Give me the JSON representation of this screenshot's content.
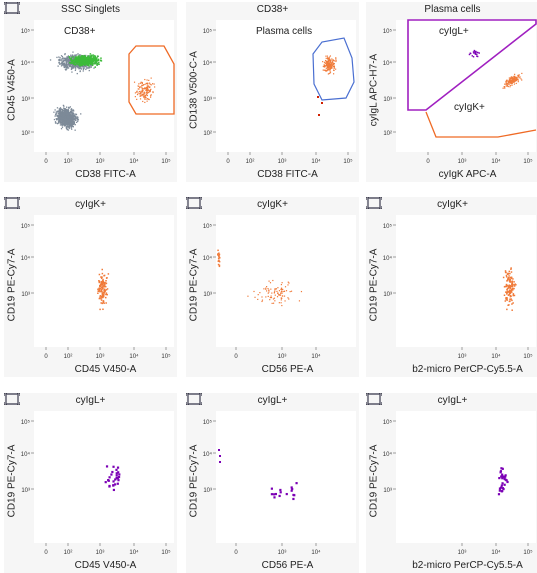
{
  "colors": {
    "gray_events": "#7d8a98",
    "green_events": "#3dbb3a",
    "orange_events": "#f07b3a",
    "purple_events": "#7b00b5",
    "gate_orange": "#ef6a25",
    "gate_blue": "#4a6fd1",
    "gate_purple": "#a020c0"
  },
  "icons": {
    "corner": "axis-toggle-icon"
  },
  "ticks": {
    "y_log": [
      "10⁵",
      "10⁴",
      "10³",
      "10²"
    ],
    "y_log_short": [
      "10⁵",
      "10⁴",
      "10³"
    ],
    "x_log": [
      "0",
      "10²",
      "10³",
      "10⁴",
      "10⁵"
    ],
    "x_cd56": [
      "0",
      "10³",
      "10⁴"
    ],
    "x_b2": [
      "10³",
      "10⁴",
      "10⁵"
    ],
    "x_cyigk": [
      "0",
      "10³",
      "10⁴",
      "10⁵"
    ]
  },
  "panels": [
    {
      "title": "SSC Singlets",
      "xlabel": "CD38 FITC-A",
      "ylabel": "CD45 V450-A",
      "gate_label": "CD38+"
    },
    {
      "title": "CD38+",
      "xlabel": "CD38 FITC-A",
      "ylabel": "CD138 V500-C-A",
      "gate_label": "Plasma cells"
    },
    {
      "title": "Plasma cells",
      "xlabel": "cyIgK APC-A",
      "ylabel": "cyIgL APC-H7-A",
      "gate_label": "cyIgL+",
      "gate_label2": "cyIgK+"
    },
    {
      "title": "cyIgK+",
      "xlabel": "CD45 V450-A",
      "ylabel": "CD19 PE-Cy7-A"
    },
    {
      "title": "cyIgK+",
      "xlabel": "CD56 PE-A",
      "ylabel": "CD19 PE-Cy7-A"
    },
    {
      "title": "cyIgK+",
      "xlabel": "b2-micro PerCP-Cy5.5-A",
      "ylabel": "CD19 PE-Cy7-A"
    },
    {
      "title": "cyIgL+",
      "xlabel": "CD45 V450-A",
      "ylabel": "CD19 PE-Cy7-A"
    },
    {
      "title": "cyIgL+",
      "xlabel": "CD56 PE-A",
      "ylabel": "CD19 PE-Cy7-A"
    },
    {
      "title": "cyIgL+",
      "xlabel": "b2-micro PerCP-Cy5.5-A",
      "ylabel": "CD19 PE-Cy7-A"
    }
  ]
}
